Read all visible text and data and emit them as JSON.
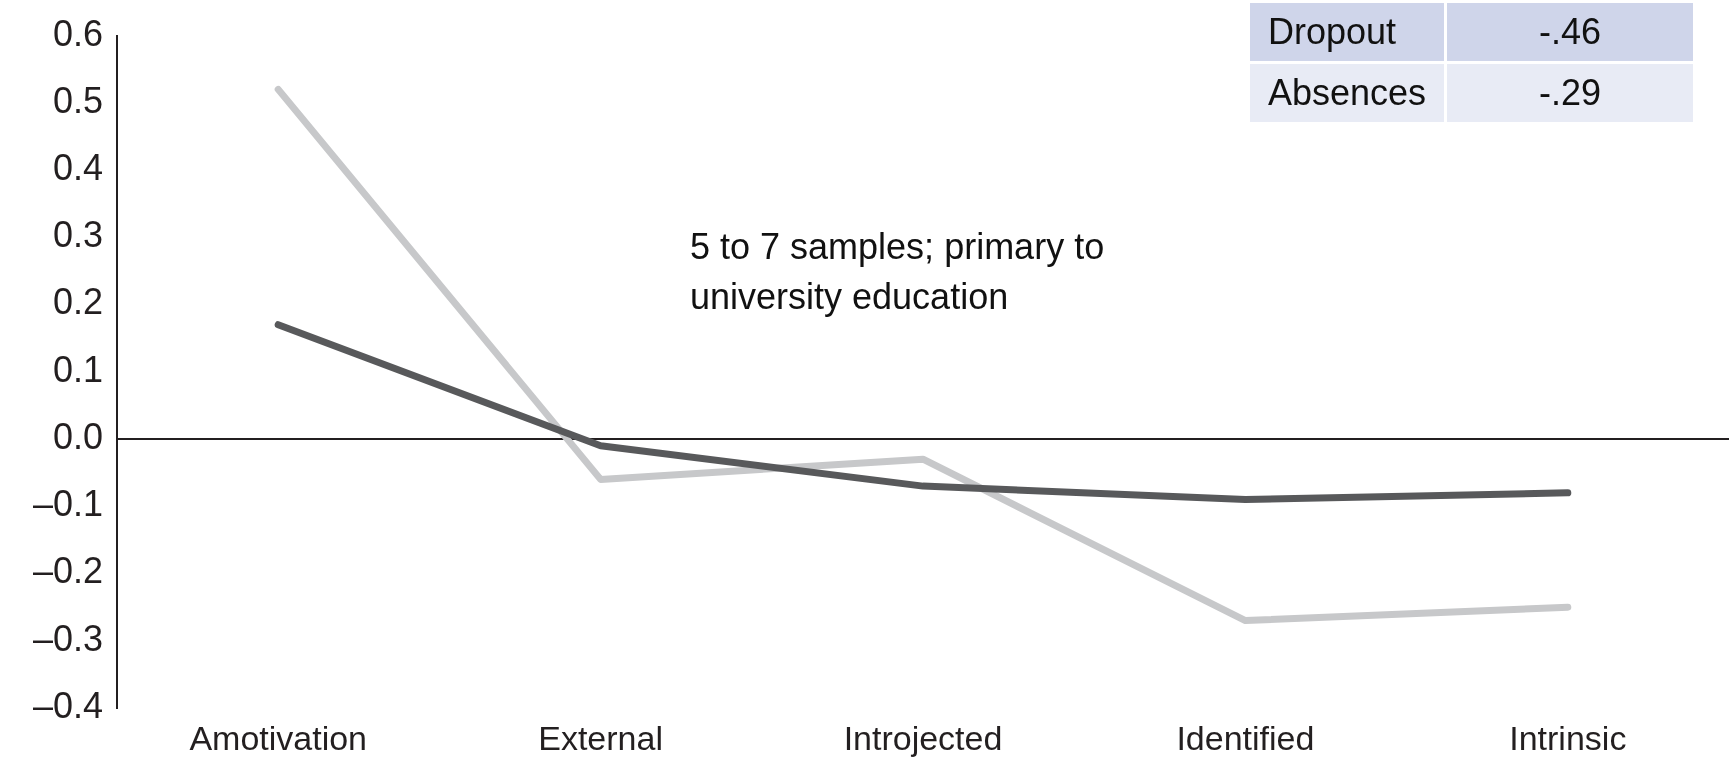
{
  "chart_data": {
    "type": "line",
    "categories": [
      "Amotivation",
      "External",
      "Introjected",
      "Identified",
      "Intrinsic"
    ],
    "series": [
      {
        "color": "#58595b",
        "values": [
          0.17,
          -0.01,
          -0.07,
          -0.09,
          -0.08
        ]
      },
      {
        "color": "#c7c8ca",
        "values": [
          0.52,
          -0.06,
          -0.03,
          -0.27,
          -0.25
        ]
      }
    ],
    "ylim": [
      -0.4,
      0.6
    ],
    "yticks": [
      {
        "value": 0.6,
        "label": "0.6"
      },
      {
        "value": 0.5,
        "label": "0.5"
      },
      {
        "value": 0.4,
        "label": "0.4"
      },
      {
        "value": 0.3,
        "label": "0.3"
      },
      {
        "value": 0.2,
        "label": "0.2"
      },
      {
        "value": 0.1,
        "label": "0.1"
      },
      {
        "value": 0,
        "label": "0.0"
      },
      {
        "value": -0.1,
        "label": "–0.1"
      },
      {
        "value": -0.2,
        "label": "–0.2"
      },
      {
        "value": -0.3,
        "label": "–0.3"
      },
      {
        "value": -0.4,
        "label": "–0.4"
      }
    ],
    "ref_lines": [
      {
        "axis": "y",
        "value": 0,
        "color": "#231f20"
      }
    ],
    "annotations": [
      "Dropout",
      "-.46",
      "Absences",
      "-.29",
      "5 to 7 samples; primary to university education"
    ],
    "grid": false,
    "legend": false,
    "marker": "none",
    "line_style": "solid"
  }
}
